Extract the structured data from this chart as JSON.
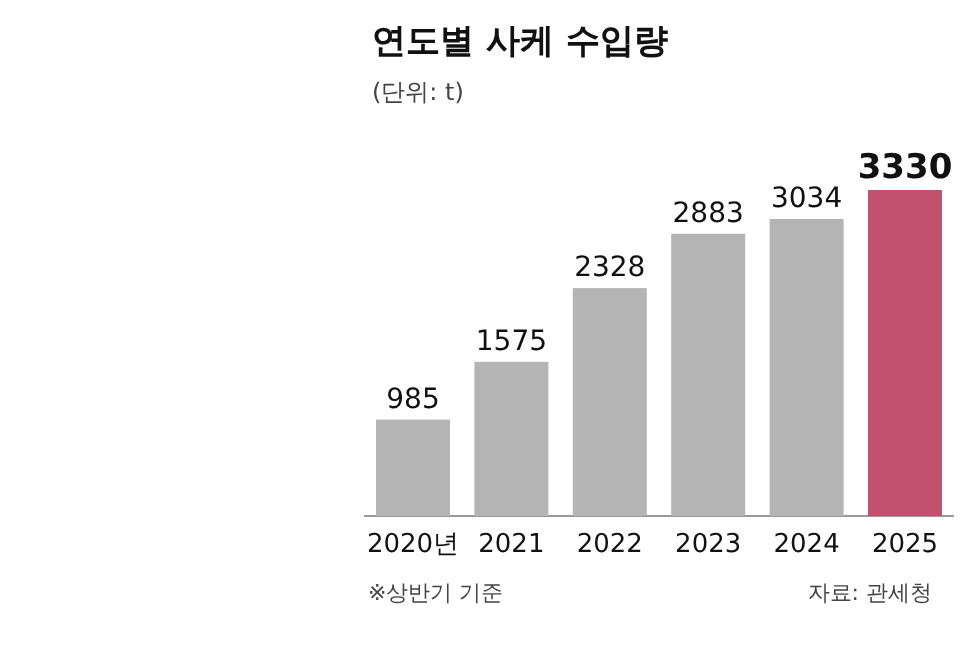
{
  "chart_data": {
    "type": "bar",
    "title": "연도별 사케 수입량",
    "subtitle": "(단위: t)",
    "categories": [
      "2020년",
      "2021",
      "2022",
      "2023",
      "2024",
      "2025"
    ],
    "values": [
      985,
      1575,
      2328,
      2883,
      3034,
      3330
    ],
    "colors": [
      "#b4b4b4",
      "#b4b4b4",
      "#b4b4b4",
      "#b4b4b4",
      "#b4b4b4",
      "#c4506f"
    ],
    "data_labels": true,
    "annotations": [
      "※상반기 기준",
      "자료: 관세청"
    ]
  }
}
